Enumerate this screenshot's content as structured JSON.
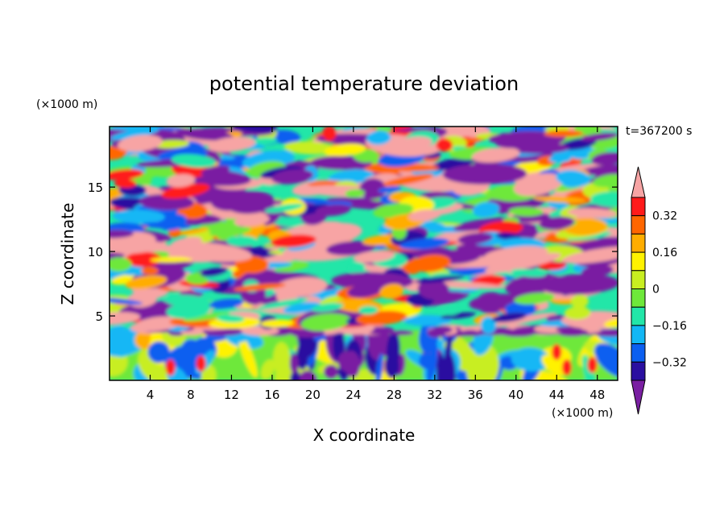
{
  "chart_data": {
    "type": "heatmap",
    "title": "potential temperature deviation",
    "time_label": "t=367200 s",
    "xlabel": "X coordinate",
    "ylabel": "Z coordinate",
    "x_unit": "(×1000 m)",
    "y_unit": "(×1000 m)",
    "xlim": [
      0,
      50
    ],
    "ylim": [
      0,
      19.7
    ],
    "x_ticks": [
      "4",
      "8",
      "12",
      "16",
      "20",
      "24",
      "28",
      "32",
      "36",
      "40",
      "44",
      "48"
    ],
    "y_ticks": [
      "5",
      "10",
      "15"
    ],
    "colorbar": {
      "tick_labels": [
        "0.32",
        "0.16",
        "0",
        "−0.16",
        "−0.32"
      ],
      "tick_values": [
        0.32,
        0.16,
        0,
        -0.16,
        -0.32
      ],
      "levels": [
        -0.4,
        -0.32,
        -0.24,
        -0.16,
        -0.08,
        0,
        0.08,
        0.16,
        0.24,
        0.32,
        0.4
      ],
      "colors": [
        "#7a1fa2",
        "#2a0fa0",
        "#0b5ff0",
        "#12b7f5",
        "#22e6a8",
        "#6ee83a",
        "#c8ee20",
        "#fff200",
        "#ffad00",
        "#ff6600",
        "#ff1a1a",
        "#f7a4a4"
      ],
      "extend": "both"
    },
    "grid": false,
    "field_description_note": ""
  }
}
